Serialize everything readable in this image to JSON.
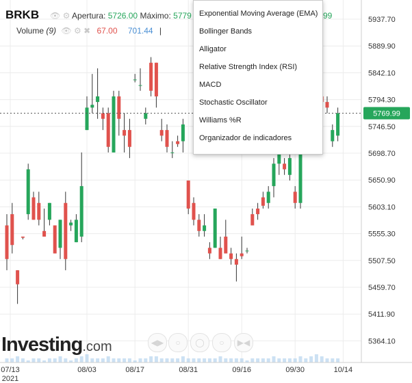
{
  "header": {
    "symbol": "BRKB",
    "open_label": "Apertura:",
    "open_value": "5726.00",
    "max_label": "Máximo:",
    "max_value": "5779",
    "hidden_value_tail": "99",
    "volume_label": "Volume",
    "volume_param": "(9)",
    "volume_value_red": "67.00",
    "volume_value_blue": "701.44",
    "cursor_mark": "|"
  },
  "indicator_menu": {
    "items": [
      "Exponential Moving Average (EMA)",
      "Bollinger Bands",
      "Alligator",
      "Relative Strength Index (RSI)",
      "MACD",
      "Stochastic Oscillator",
      "Williams %R",
      "Organizador de indicadores"
    ]
  },
  "nav_controls": [
    "zoom-out-icon",
    "reset-icon",
    "zoom-in-icon",
    "scroll-left-icon",
    "scroll-right-icon"
  ],
  "watermark": {
    "main": "Investing",
    "suffix": ".com"
  },
  "colors": {
    "up": "#26a65b",
    "down": "#e0524d",
    "price_tag": "#26a65b",
    "grid": "#ececec",
    "volume": "#b6d4ee"
  },
  "chart_data": {
    "type": "candlestick",
    "title": "BRKB",
    "y_ticks": [
      "5937.70",
      "5889.90",
      "5842.10",
      "5794.30",
      "5746.50",
      "5698.70",
      "5650.90",
      "5603.10",
      "5555.30",
      "5507.50",
      "5459.70",
      "5411.90",
      "5364.10"
    ],
    "ylim": [
      5340,
      5960
    ],
    "x_ticks": [
      "07/13",
      "08/03",
      "08/17",
      "08/31",
      "09/16",
      "09/30",
      "10/14"
    ],
    "x_year": "2021",
    "last_price": 5769.99,
    "last_price_label": "5769.99",
    "candles": [
      {
        "o": 5570,
        "h": 5590,
        "l": 5490,
        "c": 5510
      },
      {
        "o": 5590,
        "h": 5610,
        "l": 5520,
        "c": 5535
      },
      {
        "o": 5490,
        "h": 5490,
        "l": 5430,
        "c": 5465
      },
      {
        "o": 5550,
        "h": 5550,
        "l": 5545,
        "c": 5548
      },
      {
        "o": 5590,
        "h": 5680,
        "l": 5580,
        "c": 5670
      },
      {
        "o": 5620,
        "h": 5630,
        "l": 5580,
        "c": 5580
      },
      {
        "o": 5610,
        "h": 5630,
        "l": 5570,
        "c": 5580
      },
      {
        "o": 5560,
        "h": 5600,
        "l": 5550,
        "c": 5550
      },
      {
        "o": 5580,
        "h": 5610,
        "l": 5570,
        "c": 5610
      },
      {
        "o": 5570,
        "h": 5570,
        "l": 5520,
        "c": 5520
      },
      {
        "o": 5530,
        "h": 5580,
        "l": 5510,
        "c": 5580
      },
      {
        "o": 5610,
        "h": 5630,
        "l": 5490,
        "c": 5510
      },
      {
        "o": 5570,
        "h": 5580,
        "l": 5560,
        "c": 5575
      },
      {
        "o": 5540,
        "h": 5590,
        "l": 5540,
        "c": 5580
      },
      {
        "o": 5550,
        "h": 5700,
        "l": 5540,
        "c": 5640
      },
      {
        "o": 5740,
        "h": 5800,
        "l": 5740,
        "c": 5780
      },
      {
        "o": 5780,
        "h": 5840,
        "l": 5770,
        "c": 5785
      },
      {
        "o": 5790,
        "h": 5850,
        "l": 5760,
        "c": 5800
      },
      {
        "o": 5770,
        "h": 5780,
        "l": 5740,
        "c": 5760
      },
      {
        "o": 5770,
        "h": 5780,
        "l": 5700,
        "c": 5710
      },
      {
        "o": 5700,
        "h": 5810,
        "l": 5700,
        "c": 5800
      },
      {
        "o": 5800,
        "h": 5810,
        "l": 5730,
        "c": 5760
      },
      {
        "o": 5740,
        "h": 5770,
        "l": 5700,
        "c": 5730
      },
      {
        "o": 5740,
        "h": 5760,
        "l": 5690,
        "c": 5710
      },
      {
        "o": 5830,
        "h": 5840,
        "l": 5825,
        "c": 5830
      },
      {
        "o": 5820,
        "h": 5850,
        "l": 5810,
        "c": 5820
      },
      {
        "o": 5760,
        "h": 5780,
        "l": 5750,
        "c": 5770
      },
      {
        "o": 5860,
        "h": 5870,
        "l": 5800,
        "c": 5810
      },
      {
        "o": 5860,
        "h": 5860,
        "l": 5780,
        "c": 5800
      },
      {
        "o": 5740,
        "h": 5760,
        "l": 5720,
        "c": 5730
      },
      {
        "o": 5740,
        "h": 5750,
        "l": 5700,
        "c": 5710
      },
      {
        "o": 5700,
        "h": 5720,
        "l": 5690,
        "c": 5700
      },
      {
        "o": 5720,
        "h": 5730,
        "l": 5710,
        "c": 5715
      },
      {
        "o": 5720,
        "h": 5760,
        "l": 5700,
        "c": 5750
      },
      {
        "o": 5650,
        "h": 5650,
        "l": 5590,
        "c": 5600
      },
      {
        "o": 5610,
        "h": 5620,
        "l": 5570,
        "c": 5580
      },
      {
        "o": 5580,
        "h": 5590,
        "l": 5550,
        "c": 5560
      },
      {
        "o": 5560,
        "h": 5590,
        "l": 5550,
        "c": 5570
      },
      {
        "o": 5530,
        "h": 5540,
        "l": 5510,
        "c": 5520
      },
      {
        "o": 5530,
        "h": 5600,
        "l": 5530,
        "c": 5600
      },
      {
        "o": 5530,
        "h": 5550,
        "l": 5510,
        "c": 5510
      },
      {
        "o": 5550,
        "h": 5580,
        "l": 5520,
        "c": 5520
      },
      {
        "o": 5520,
        "h": 5530,
        "l": 5500,
        "c": 5510
      },
      {
        "o": 5510,
        "h": 5520,
        "l": 5470,
        "c": 5500
      },
      {
        "o": 5520,
        "h": 5550,
        "l": 5510,
        "c": 5515
      },
      {
        "o": 5525,
        "h": 5530,
        "l": 5520,
        "c": 5525
      },
      {
        "o": 5590,
        "h": 5600,
        "l": 5570,
        "c": 5570
      },
      {
        "o": 5600,
        "h": 5610,
        "l": 5580,
        "c": 5590
      },
      {
        "o": 5620,
        "h": 5630,
        "l": 5600,
        "c": 5605
      },
      {
        "o": 5610,
        "h": 5640,
        "l": 5600,
        "c": 5630
      },
      {
        "o": 5640,
        "h": 5690,
        "l": 5620,
        "c": 5680
      },
      {
        "o": 5680,
        "h": 5740,
        "l": 5660,
        "c": 5710
      },
      {
        "o": 5680,
        "h": 5690,
        "l": 5660,
        "c": 5670
      },
      {
        "o": 5660,
        "h": 5700,
        "l": 5650,
        "c": 5690
      },
      {
        "o": 5630,
        "h": 5640,
        "l": 5600,
        "c": 5610
      },
      {
        "o": 5610,
        "h": 5720,
        "l": 5600,
        "c": 5720
      },
      {
        "o": 5760,
        "h": 5790,
        "l": 5740,
        "c": 5790
      },
      {
        "o": 5850,
        "h": 5860,
        "l": 5760,
        "c": 5770
      },
      {
        "o": 5780,
        "h": 5810,
        "l": 5700,
        "c": 5710
      },
      {
        "o": 5800,
        "h": 5820,
        "l": 5760,
        "c": 5790
      },
      {
        "o": 5790,
        "h": 5800,
        "l": 5770,
        "c": 5780
      },
      {
        "o": 5720,
        "h": 5750,
        "l": 5710,
        "c": 5740
      },
      {
        "o": 5730,
        "h": 5780,
        "l": 5720,
        "c": 5770
      }
    ],
    "volume": [
      2,
      2,
      3,
      2,
      1,
      2,
      2,
      1,
      2,
      2,
      3,
      2,
      1,
      2,
      3,
      4,
      2,
      2,
      2,
      3,
      2,
      2,
      2,
      2,
      1,
      2,
      2,
      3,
      3,
      2,
      2,
      2,
      2,
      3,
      2,
      2,
      2,
      2,
      2,
      2,
      3,
      2,
      2,
      2,
      2,
      1,
      2,
      2,
      2,
      2,
      3,
      2,
      2,
      2,
      2,
      3,
      2,
      3,
      4,
      3,
      2,
      2,
      2
    ]
  }
}
